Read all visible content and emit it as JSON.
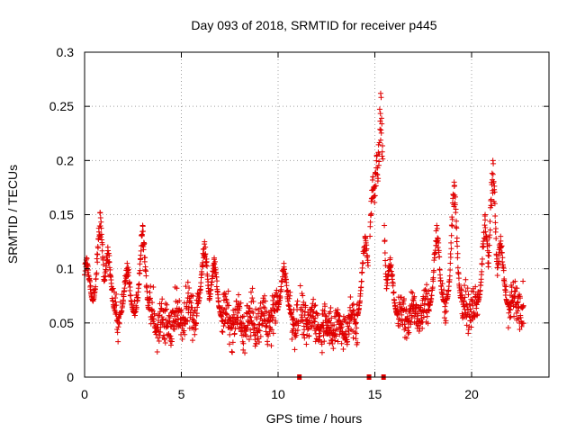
{
  "chart_data": {
    "type": "scatter",
    "title": "Day 093 of 2018, SRMTID for receiver p445",
    "xlabel": "GPS time / hours",
    "ylabel": "SRMTID / TECUs",
    "xlim": [
      0,
      24
    ],
    "ylim": [
      0,
      0.3
    ],
    "x_ticks": [
      0,
      5,
      10,
      15,
      20
    ],
    "y_ticks": [
      0,
      0.05,
      0.1,
      0.15,
      0.2,
      0.25,
      0.3
    ],
    "x_tick_labels": [
      "0",
      "5",
      "10",
      "15",
      "20"
    ],
    "y_tick_labels": [
      "0",
      "0.05",
      "0.1",
      "0.15",
      "0.2",
      "0.25",
      "0.3"
    ],
    "grid": true,
    "marker": "plus",
    "series": [
      {
        "name": "SRMTID",
        "color": "#e00000",
        "baseline_profile": {
          "x": [
            0.0,
            1.0,
            2.0,
            3.0,
            4.0,
            5.0,
            6.0,
            7.0,
            8.0,
            9.0,
            10.0,
            11.0,
            12.0,
            13.0,
            14.0,
            14.5,
            15.0,
            15.5,
            16.0,
            17.0,
            18.0,
            19.0,
            20.0,
            21.0,
            22.0,
            22.7
          ],
          "y": [
            0.07,
            0.065,
            0.055,
            0.06,
            0.05,
            0.055,
            0.065,
            0.055,
            0.05,
            0.05,
            0.06,
            0.055,
            0.05,
            0.045,
            0.05,
            0.075,
            0.1,
            0.07,
            0.055,
            0.06,
            0.065,
            0.07,
            0.065,
            0.07,
            0.065,
            0.065
          ]
        },
        "peaks": [
          {
            "x": 0.1,
            "y": 0.11
          },
          {
            "x": 0.8,
            "y": 0.152
          },
          {
            "x": 1.2,
            "y": 0.12
          },
          {
            "x": 2.2,
            "y": 0.105
          },
          {
            "x": 3.0,
            "y": 0.14
          },
          {
            "x": 6.2,
            "y": 0.125
          },
          {
            "x": 6.7,
            "y": 0.11
          },
          {
            "x": 10.3,
            "y": 0.105
          },
          {
            "x": 14.5,
            "y": 0.13
          },
          {
            "x": 14.9,
            "y": 0.185
          },
          {
            "x": 15.1,
            "y": 0.205
          },
          {
            "x": 15.3,
            "y": 0.262
          },
          {
            "x": 15.8,
            "y": 0.11
          },
          {
            "x": 18.2,
            "y": 0.14
          },
          {
            "x": 19.1,
            "y": 0.18
          },
          {
            "x": 20.7,
            "y": 0.15
          },
          {
            "x": 21.1,
            "y": 0.2
          },
          {
            "x": 21.5,
            "y": 0.13
          }
        ],
        "data_gaps_x": [
          11.1,
          14.7,
          15.45
        ]
      }
    ]
  }
}
